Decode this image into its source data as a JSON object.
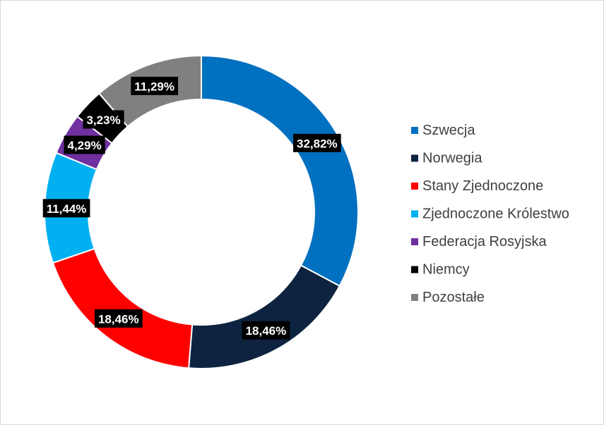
{
  "chart_data": {
    "type": "pie",
    "title": "",
    "legend_position": "right",
    "series": [
      {
        "label": "Szwecja",
        "value": 32.82,
        "value_label": "32,82%",
        "color": "#0070C0"
      },
      {
        "label": "Norwegia",
        "value": 18.46,
        "value_label": "18,46%",
        "color": "#0D2340"
      },
      {
        "label": "Stany Zjednoczone",
        "value": 18.46,
        "value_label": "18,46%",
        "color": "#FF0000"
      },
      {
        "label": "Zjednoczone Królestwo",
        "value": 11.44,
        "value_label": "11,44%",
        "color": "#00B0F0"
      },
      {
        "label": "Federacja Rosyjska",
        "value": 4.29,
        "value_label": "4,29%",
        "color": "#7030A0"
      },
      {
        "label": "Niemcy",
        "value": 3.23,
        "value_label": "3,23%",
        "color": "#000000"
      },
      {
        "label": "Pozostałe",
        "value": 11.29,
        "value_label": "11,29%",
        "color": "#808080"
      }
    ]
  }
}
